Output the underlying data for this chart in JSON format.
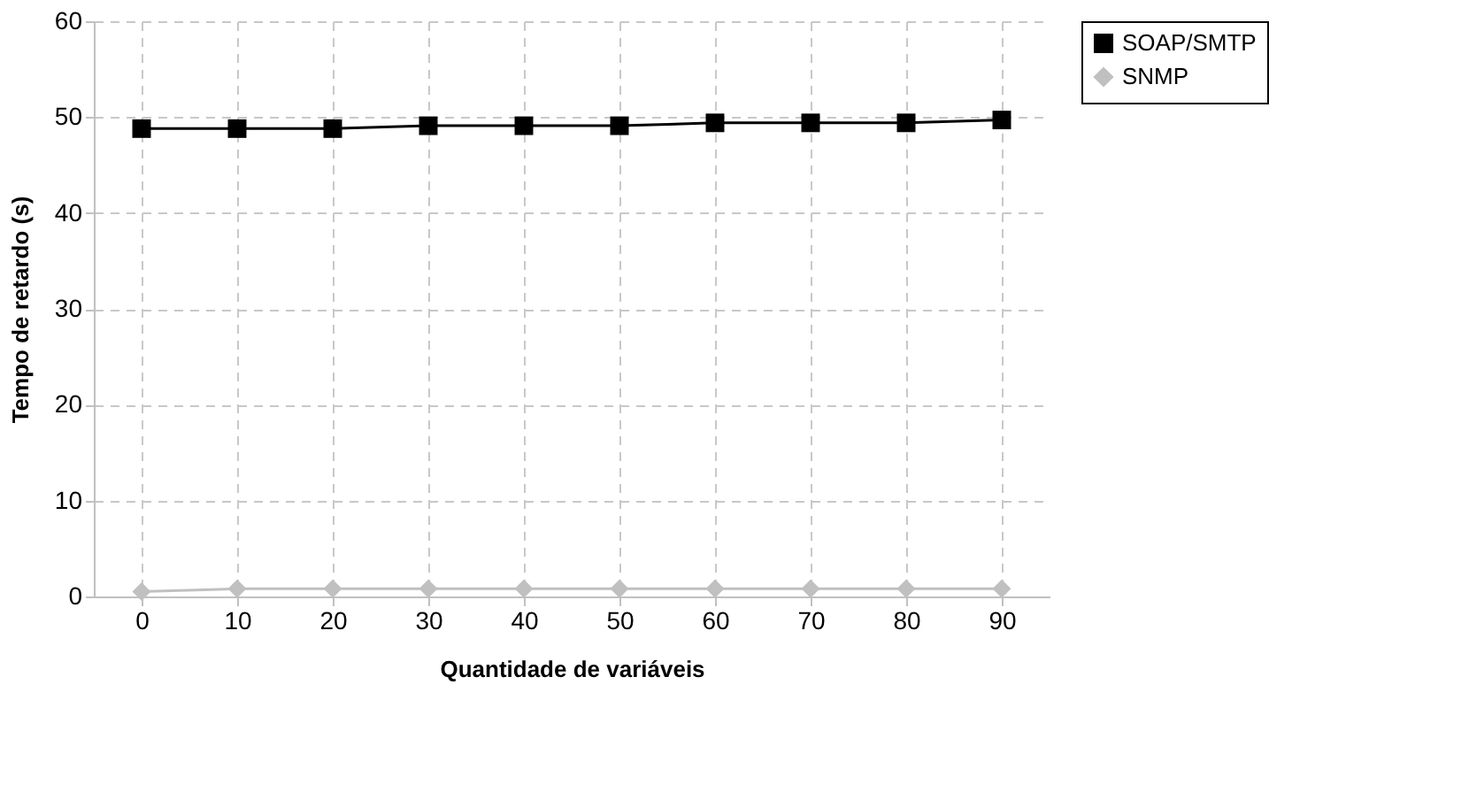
{
  "chart_data": {
    "type": "line",
    "xlabel": "Quantidade de variáveis",
    "ylabel": "Tempo de retardo (s)",
    "categories": [
      "0",
      "10",
      "20",
      "30",
      "40",
      "50",
      "60",
      "70",
      "80",
      "90"
    ],
    "series": [
      {
        "name": "SOAP/SMTP",
        "color": "#000000",
        "marker": "square",
        "values": [
          48.8,
          48.8,
          48.8,
          49.1,
          49.1,
          49.1,
          49.4,
          49.4,
          49.4,
          49.7
        ]
      },
      {
        "name": "SNMP",
        "color": "#c0c0c0",
        "marker": "diamond",
        "values": [
          0.5,
          0.8,
          0.8,
          0.8,
          0.8,
          0.8,
          0.8,
          0.8,
          0.8,
          0.8
        ]
      }
    ],
    "ylim": [
      0,
      60
    ],
    "yticks": [
      0,
      10,
      20,
      30,
      40,
      50,
      60
    ],
    "grid": true,
    "legend": "right",
    "line_style": "solid"
  }
}
